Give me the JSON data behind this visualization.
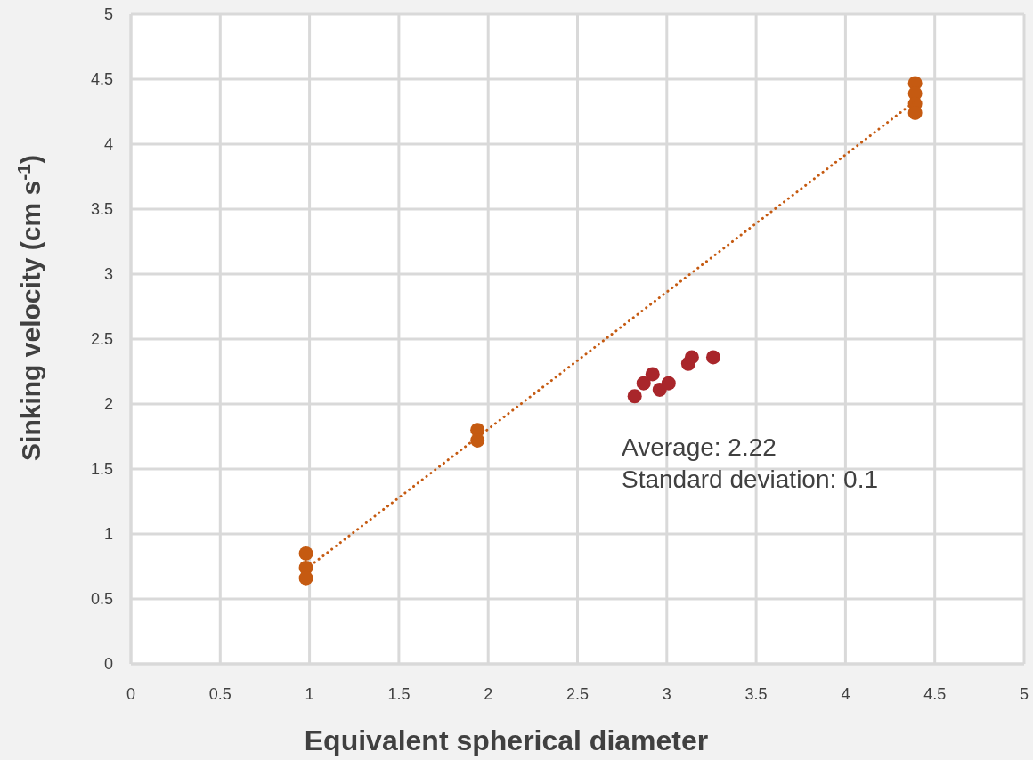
{
  "chart_data": {
    "type": "scatter",
    "xlabel": "Equivalent spherical diameter",
    "ylabel": "Sinking velocity (cm s$^{-1}$)",
    "xlim": [
      0,
      5
    ],
    "xticks": [
      0,
      0.5,
      1,
      1.5,
      2,
      2.5,
      3,
      3.5,
      4,
      4.5,
      5
    ],
    "ylim": [
      0,
      5
    ],
    "yticks": [
      0,
      0.5,
      1,
      1.5,
      2,
      2.5,
      3,
      3.5,
      4,
      4.5,
      5
    ],
    "grid": true,
    "series": [
      {
        "color": "#c55a11",
        "marker": "circle",
        "x": [
          0.98,
          0.98,
          0.98,
          1.94,
          1.94,
          4.39,
          4.39,
          4.39,
          4.39
        ],
        "values": [
          0.85,
          0.74,
          0.66,
          1.8,
          1.72,
          4.47,
          4.39,
          4.31,
          4.24
        ]
      },
      {
        "color": "#a9262b",
        "marker": "circle",
        "x": [
          2.82,
          2.87,
          2.92,
          2.96,
          3.01,
          3.12,
          3.14,
          3.26
        ],
        "values": [
          2.06,
          2.16,
          2.23,
          2.11,
          2.16,
          2.31,
          2.36,
          2.36
        ]
      },
      {
        "type": "line",
        "color": "#c55a11",
        "line_style": "dotted",
        "x": [
          0.98,
          4.39
        ],
        "values": [
          0.73,
          4.33
        ]
      }
    ],
    "annotations": [
      "Average: 2.22",
      "Standard deviation: 0.1"
    ]
  }
}
